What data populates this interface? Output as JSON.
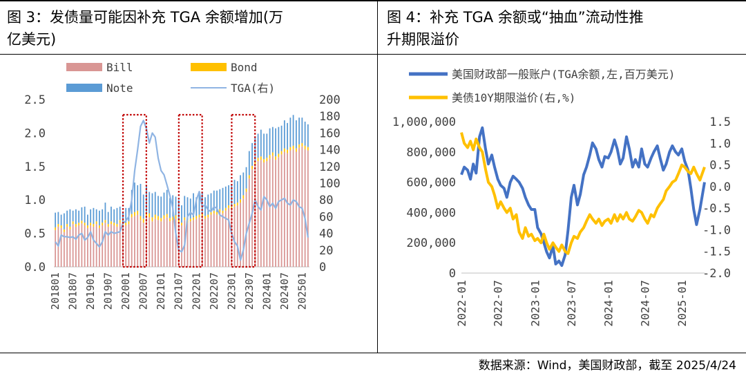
{
  "left_title": {
    "line1": "图 3：发债量可能因补充 TGA 余额增加(万",
    "line2": "亿美元)"
  },
  "right_title": {
    "line1": "图 4：补充 TGA 余额或“抽血”流动性推",
    "line2": "升期限溢价"
  },
  "source": "数据来源：Wind，美国财政部，截至 2025/4/24",
  "chart_data": [
    {
      "type": "bar",
      "stacked": true,
      "legend_position": "top",
      "x": [
        "201801",
        "201802",
        "201803",
        "201804",
        "201805",
        "201806",
        "201807",
        "201808",
        "201809",
        "201810",
        "201811",
        "201812",
        "201901",
        "201902",
        "201903",
        "201904",
        "201905",
        "201906",
        "201907",
        "201908",
        "201909",
        "201910",
        "201911",
        "201912",
        "202001",
        "202002",
        "202003",
        "202004",
        "202005",
        "202006",
        "202007",
        "202008",
        "202009",
        "202010",
        "202011",
        "202012",
        "202101",
        "202102",
        "202103",
        "202104",
        "202105",
        "202106",
        "202107",
        "202108",
        "202109",
        "202110",
        "202111",
        "202112",
        "202201",
        "202202",
        "202203",
        "202204",
        "202205",
        "202206",
        "202207",
        "202208",
        "202209",
        "202210",
        "202211",
        "202212",
        "202301",
        "202302",
        "202303",
        "202304",
        "202305",
        "202306",
        "202307",
        "202308",
        "202309",
        "202310",
        "202311",
        "202312",
        "202401",
        "202402",
        "202403",
        "202404",
        "202405",
        "202406",
        "202407",
        "202408",
        "202409",
        "202410",
        "202411",
        "202412",
        "202501",
        "202502",
        "202503"
      ],
      "x_tick_labels": [
        "201801",
        "201807",
        "201901",
        "201907",
        "202001",
        "202007",
        "202101",
        "202107",
        "202201",
        "202207",
        "202301",
        "202307",
        "202401",
        "202407",
        "202501"
      ],
      "y_left": {
        "range": [
          0,
          2.5
        ],
        "ticks": [
          "0.0",
          "0.5",
          "1.0",
          "1.5",
          "2.0",
          "2.5"
        ]
      },
      "y_right": {
        "range": [
          0,
          200
        ],
        "ticks": [
          "0",
          "20",
          "40",
          "60",
          "80",
          "100",
          "120",
          "140",
          "160",
          "180",
          "200"
        ]
      },
      "series": [
        {
          "name": "Bill",
          "axis": "left",
          "color": "#d99694",
          "values": [
            0.55,
            0.6,
            0.58,
            0.52,
            0.6,
            0.56,
            0.64,
            0.6,
            0.62,
            0.65,
            0.62,
            0.58,
            0.62,
            0.6,
            0.64,
            0.58,
            0.62,
            0.66,
            0.6,
            0.64,
            0.62,
            0.6,
            0.66,
            0.62,
            0.62,
            0.64,
            0.74,
            0.76,
            0.78,
            0.7,
            0.66,
            0.76,
            0.74,
            0.68,
            0.72,
            0.7,
            0.68,
            0.72,
            0.74,
            0.68,
            0.7,
            0.72,
            0.66,
            0.62,
            0.7,
            0.66,
            0.68,
            0.7,
            0.72,
            0.74,
            0.76,
            0.72,
            0.74,
            0.78,
            0.8,
            0.78,
            0.82,
            0.8,
            0.84,
            0.88,
            0.86,
            0.9,
            0.92,
            0.96,
            1.02,
            1.12,
            1.32,
            1.46,
            1.52,
            1.58,
            1.6,
            1.56,
            1.58,
            1.62,
            1.66,
            1.6,
            1.64,
            1.68,
            1.72,
            1.7,
            1.74,
            1.76,
            1.72,
            1.78,
            1.8,
            1.76,
            1.74
          ]
        },
        {
          "name": "Bond",
          "axis": "left",
          "color": "#ffc000",
          "values": [
            0.04,
            0.04,
            0.04,
            0.04,
            0.04,
            0.04,
            0.04,
            0.04,
            0.04,
            0.04,
            0.04,
            0.04,
            0.04,
            0.04,
            0.04,
            0.04,
            0.04,
            0.04,
            0.04,
            0.04,
            0.04,
            0.04,
            0.04,
            0.04,
            0.04,
            0.04,
            0.05,
            0.06,
            0.06,
            0.06,
            0.06,
            0.06,
            0.06,
            0.06,
            0.06,
            0.06,
            0.05,
            0.05,
            0.05,
            0.05,
            0.05,
            0.05,
            0.04,
            0.04,
            0.04,
            0.04,
            0.04,
            0.04,
            0.04,
            0.04,
            0.04,
            0.04,
            0.04,
            0.04,
            0.04,
            0.04,
            0.04,
            0.04,
            0.04,
            0.04,
            0.04,
            0.04,
            0.04,
            0.05,
            0.05,
            0.05,
            0.05,
            0.05,
            0.05,
            0.05,
            0.05,
            0.05,
            0.05,
            0.05,
            0.05,
            0.05,
            0.05,
            0.05,
            0.05,
            0.05,
            0.05,
            0.05,
            0.05,
            0.05,
            0.05,
            0.05,
            0.05
          ]
        },
        {
          "name": "Note",
          "axis": "left",
          "color": "#5b9bd5",
          "values": [
            0.22,
            0.18,
            0.16,
            0.24,
            0.2,
            0.26,
            0.16,
            0.22,
            0.18,
            0.2,
            0.24,
            0.16,
            0.2,
            0.24,
            0.18,
            0.22,
            0.2,
            0.26,
            0.18,
            0.22,
            0.2,
            0.24,
            0.2,
            0.16,
            0.22,
            0.2,
            0.36,
            0.44,
            0.38,
            0.48,
            0.36,
            0.4,
            0.32,
            0.36,
            0.34,
            0.3,
            0.32,
            0.34,
            0.36,
            0.3,
            0.32,
            0.28,
            0.3,
            0.26,
            0.32,
            0.34,
            0.3,
            0.36,
            0.28,
            0.3,
            0.32,
            0.28,
            0.3,
            0.28,
            0.3,
            0.32,
            0.3,
            0.34,
            0.32,
            0.3,
            0.34,
            0.36,
            0.32,
            0.36,
            0.34,
            0.32,
            0.36,
            0.34,
            0.38,
            0.36,
            0.4,
            0.38,
            0.36,
            0.4,
            0.38,
            0.42,
            0.4,
            0.38,
            0.42,
            0.4,
            0.44,
            0.46,
            0.42,
            0.4,
            0.38,
            0.36,
            0.34
          ]
        },
        {
          "name": "TGA(右)",
          "axis": "right",
          "type": "line",
          "color": "#8fb4e3",
          "values": [
            30,
            25,
            38,
            36,
            36,
            35,
            36,
            33,
            38,
            40,
            32,
            35,
            42,
            32,
            28,
            24,
            30,
            42,
            38,
            42,
            40,
            41,
            42,
            52,
            55,
            60,
            80,
            115,
            140,
            168,
            175,
            165,
            148,
            160,
            155,
            130,
            115,
            110,
            98,
            85,
            70,
            40,
            20,
            18,
            26,
            60,
            65,
            62,
            80,
            90,
            72,
            74,
            68,
            66,
            72,
            70,
            62,
            60,
            58,
            56,
            40,
            30,
            25,
            8,
            20,
            40,
            52,
            64,
            80,
            72,
            68,
            84,
            80,
            72,
            76,
            70,
            78,
            80,
            82,
            76,
            74,
            80,
            78,
            72,
            70,
            58,
            35
          ]
        }
      ],
      "highlight_boxes": [
        {
          "x_start": "202001",
          "x_end": "202007"
        },
        {
          "x_start": "202108",
          "x_end": "202202"
        },
        {
          "x_start": "202302",
          "x_end": "202308"
        }
      ]
    },
    {
      "type": "line",
      "legend_position": "top",
      "x_tick_labels": [
        "2022-01",
        "2022-07",
        "2023-01",
        "2023-07",
        "2024-01",
        "2024-07",
        "2025-01"
      ],
      "y_left": {
        "range": [
          0,
          1000000
        ],
        "ticks": [
          "0",
          "200,000",
          "400,000",
          "600,000",
          "800,000",
          "1,000,000"
        ]
      },
      "y_right": {
        "range": [
          -2.0,
          1.5
        ],
        "ticks": [
          "-2.0",
          "-1.5",
          "-1.0",
          "-0.5",
          "0.0",
          "0.5",
          "1.0",
          "1.5"
        ]
      },
      "series": [
        {
          "name": "美国财政部一般账户(TGA余额,左,百万美元)",
          "axis": "left",
          "color": "#4472c4",
          "x": [
            "2022-01-01",
            "2022-01-15",
            "2022-02-01",
            "2022-02-15",
            "2022-03-01",
            "2022-03-15",
            "2022-04-01",
            "2022-04-15",
            "2022-05-01",
            "2022-05-15",
            "2022-06-01",
            "2022-06-15",
            "2022-07-01",
            "2022-07-15",
            "2022-08-01",
            "2022-08-15",
            "2022-09-01",
            "2022-09-15",
            "2022-10-01",
            "2022-10-15",
            "2022-11-01",
            "2022-11-15",
            "2022-12-01",
            "2022-12-15",
            "2023-01-01",
            "2023-01-15",
            "2023-02-01",
            "2023-02-15",
            "2023-03-01",
            "2023-03-15",
            "2023-04-01",
            "2023-04-15",
            "2023-05-01",
            "2023-05-15",
            "2023-06-01",
            "2023-06-15",
            "2023-07-01",
            "2023-07-15",
            "2023-08-01",
            "2023-08-15",
            "2023-09-01",
            "2023-09-15",
            "2023-10-01",
            "2023-10-15",
            "2023-11-01",
            "2023-11-15",
            "2023-12-01",
            "2023-12-15",
            "2024-01-01",
            "2024-01-15",
            "2024-02-01",
            "2024-02-15",
            "2024-03-01",
            "2024-03-15",
            "2024-04-01",
            "2024-04-15",
            "2024-05-01",
            "2024-05-15",
            "2024-06-01",
            "2024-06-15",
            "2024-07-01",
            "2024-07-15",
            "2024-08-01",
            "2024-08-15",
            "2024-09-01",
            "2024-09-15",
            "2024-10-01",
            "2024-10-15",
            "2024-11-01",
            "2024-11-15",
            "2024-12-01",
            "2024-12-15",
            "2025-01-01",
            "2025-01-15",
            "2025-02-01",
            "2025-02-15",
            "2025-03-01",
            "2025-03-15",
            "2025-04-01",
            "2025-04-24"
          ],
          "values": [
            650000,
            700000,
            680000,
            620000,
            720000,
            660000,
            900000,
            960000,
            820000,
            720000,
            780000,
            700000,
            620000,
            580000,
            560000,
            500000,
            600000,
            640000,
            620000,
            600000,
            560000,
            500000,
            450000,
            420000,
            420000,
            300000,
            260000,
            200000,
            140000,
            100000,
            180000,
            60000,
            80000,
            50000,
            120000,
            280000,
            500000,
            580000,
            450000,
            520000,
            650000,
            700000,
            780000,
            860000,
            820000,
            750000,
            700000,
            770000,
            760000,
            800000,
            880000,
            820000,
            720000,
            760000,
            900000,
            820000,
            700000,
            750000,
            700000,
            820000,
            720000,
            700000,
            760000,
            800000,
            840000,
            760000,
            680000,
            720000,
            800000,
            840000,
            800000,
            780000,
            820000,
            740000,
            680000,
            560000,
            420000,
            320000,
            420000,
            600000
          ]
        },
        {
          "name": "美债10Y期限溢价(右,%)",
          "axis": "right",
          "color": "#ffc000",
          "x": [
            "2022-01-01",
            "2022-01-15",
            "2022-02-01",
            "2022-02-15",
            "2022-03-01",
            "2022-03-15",
            "2022-04-01",
            "2022-04-15",
            "2022-05-01",
            "2022-05-15",
            "2022-06-01",
            "2022-06-15",
            "2022-07-01",
            "2022-07-15",
            "2022-08-01",
            "2022-08-15",
            "2022-09-01",
            "2022-09-15",
            "2022-10-01",
            "2022-10-15",
            "2022-11-01",
            "2022-11-15",
            "2022-12-01",
            "2022-12-15",
            "2023-01-01",
            "2023-01-15",
            "2023-02-01",
            "2023-02-15",
            "2023-03-01",
            "2023-03-15",
            "2023-04-01",
            "2023-04-15",
            "2023-05-01",
            "2023-05-15",
            "2023-06-01",
            "2023-06-15",
            "2023-07-01",
            "2023-07-15",
            "2023-08-01",
            "2023-08-15",
            "2023-09-01",
            "2023-09-15",
            "2023-10-01",
            "2023-10-15",
            "2023-11-01",
            "2023-11-15",
            "2023-12-01",
            "2023-12-15",
            "2024-01-01",
            "2024-01-15",
            "2024-02-01",
            "2024-02-15",
            "2024-03-01",
            "2024-03-15",
            "2024-04-01",
            "2024-04-15",
            "2024-05-01",
            "2024-05-15",
            "2024-06-01",
            "2024-06-15",
            "2024-07-01",
            "2024-07-15",
            "2024-08-01",
            "2024-08-15",
            "2024-09-01",
            "2024-09-15",
            "2024-10-01",
            "2024-10-15",
            "2024-11-01",
            "2024-11-15",
            "2024-12-01",
            "2024-12-15",
            "2025-01-01",
            "2025-01-15",
            "2025-02-01",
            "2025-02-15",
            "2025-03-01",
            "2025-03-15",
            "2025-04-01",
            "2025-04-24"
          ],
          "values": [
            1.25,
            1.0,
            0.9,
            1.05,
            0.85,
            1.1,
            0.9,
            0.8,
            0.4,
            0.1,
            0.0,
            -0.2,
            -0.5,
            -0.35,
            -0.5,
            -0.6,
            -0.5,
            -0.75,
            -0.65,
            -1.05,
            -1.2,
            -0.95,
            -1.15,
            -1.1,
            -1.25,
            -1.2,
            -1.3,
            -1.1,
            -1.3,
            -1.45,
            -1.3,
            -1.4,
            -1.5,
            -1.35,
            -1.5,
            -1.55,
            -1.3,
            -1.15,
            -1.2,
            -1.05,
            -0.95,
            -0.8,
            -0.65,
            -0.75,
            -0.85,
            -0.75,
            -0.9,
            -0.8,
            -0.75,
            -0.85,
            -0.65,
            -0.8,
            -0.65,
            -0.75,
            -0.6,
            -0.75,
            -0.8,
            -0.7,
            -0.55,
            -0.6,
            -0.75,
            -0.85,
            -0.65,
            -0.7,
            -0.5,
            -0.4,
            -0.3,
            -0.1,
            0.0,
            0.1,
            0.15,
            0.3,
            0.5,
            0.45,
            0.35,
            0.3,
            0.45,
            0.3,
            0.15,
            0.45
          ]
        }
      ]
    }
  ]
}
